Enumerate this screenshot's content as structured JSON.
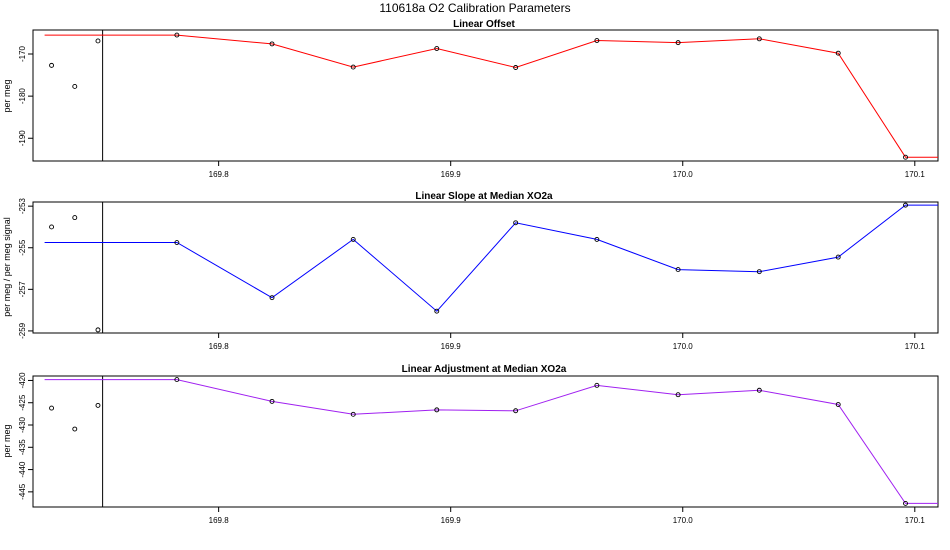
{
  "figure": {
    "title": "110618a   O2 Calibration Parameters"
  },
  "chart_data": [
    {
      "type": "line",
      "title": "Linear Offset",
      "xlabel": "",
      "ylabel": "per meg",
      "color": "#ff0000",
      "grid": false,
      "xlim": [
        169.72,
        170.11
      ],
      "ylim": [
        -195.4,
        -164.3
      ],
      "xticks": [
        169.8,
        169.9,
        170.0,
        170.1
      ],
      "xtick_labels": [
        "169.8",
        "169.9",
        "170.0",
        "170.1"
      ],
      "yticks": [
        -170,
        -180,
        -190
      ],
      "ytick_labels": [
        "-170",
        "-180",
        "-190"
      ],
      "vline_x": 169.75,
      "series_line": {
        "x": [
          169.725,
          169.782,
          169.823,
          169.858,
          169.894,
          169.928,
          169.963,
          169.998,
          170.033,
          170.067,
          170.096,
          170.11
        ],
        "y": [
          -165.5,
          -165.5,
          -167.6,
          -173.1,
          -168.7,
          -173.2,
          -166.8,
          -167.3,
          -166.4,
          -169.8,
          -194.5,
          -194.5
        ]
      },
      "series_points": {
        "x": [
          169.728,
          169.738,
          169.748,
          169.782,
          169.823,
          169.858,
          169.894,
          169.928,
          169.963,
          169.998,
          170.033,
          170.067,
          170.096
        ],
        "y": [
          -172.7,
          -177.7,
          -166.9,
          -165.5,
          -167.6,
          -173.1,
          -168.7,
          -173.2,
          -166.8,
          -167.3,
          -166.4,
          -169.8,
          -194.5
        ]
      }
    },
    {
      "type": "line",
      "title": "Linear Slope at Median XO2a",
      "xlabel": "",
      "ylabel": "per meg / per meg signal",
      "color": "#0000ff",
      "grid": false,
      "xlim": [
        169.72,
        170.11
      ],
      "ylim": [
        -259.1,
        -252.8
      ],
      "xticks": [
        169.8,
        169.9,
        170.0,
        170.1
      ],
      "xtick_labels": [
        "169.8",
        "169.9",
        "170.0",
        "170.1"
      ],
      "yticks": [
        -253,
        -255,
        -257,
        -259
      ],
      "ytick_labels": [
        "-253",
        "-255",
        "-257",
        "-259"
      ],
      "vline_x": 169.75,
      "series_line": {
        "x": [
          169.725,
          169.782,
          169.823,
          169.858,
          169.894,
          169.928,
          169.963,
          169.998,
          170.033,
          170.067,
          170.096,
          170.11
        ],
        "y": [
          -254.75,
          -254.75,
          -257.4,
          -254.6,
          -258.05,
          -253.8,
          -254.6,
          -256.05,
          -256.15,
          -255.45,
          -252.95,
          -252.95
        ]
      },
      "series_points": {
        "x": [
          169.728,
          169.738,
          169.748,
          169.782,
          169.823,
          169.858,
          169.894,
          169.928,
          169.963,
          169.998,
          170.033,
          170.067,
          170.096
        ],
        "y": [
          -254.0,
          -253.55,
          -258.95,
          -254.75,
          -257.4,
          -254.6,
          -258.05,
          -253.8,
          -254.6,
          -256.05,
          -256.15,
          -255.45,
          -252.95
        ]
      }
    },
    {
      "type": "line",
      "title": "Linear Adjustment at Median XO2a",
      "xlabel": "",
      "ylabel": "per meg",
      "color": "#a020f0",
      "grid": false,
      "xlim": [
        169.72,
        170.11
      ],
      "ylim": [
        -448.4,
        -419.0
      ],
      "xticks": [
        169.8,
        169.9,
        170.0,
        170.1
      ],
      "xtick_labels": [
        "169.8",
        "169.9",
        "170.0",
        "170.1"
      ],
      "yticks": [
        -420,
        -425,
        -430,
        -435,
        -440,
        -445
      ],
      "ytick_labels": [
        "-420",
        "-425",
        "-430",
        "-435",
        "-440",
        "-445"
      ],
      "vline_x": 169.75,
      "series_line": {
        "x": [
          169.725,
          169.782,
          169.823,
          169.858,
          169.894,
          169.928,
          169.963,
          169.998,
          170.033,
          170.067,
          170.096,
          170.11
        ],
        "y": [
          -419.8,
          -419.8,
          -424.7,
          -427.6,
          -426.6,
          -426.8,
          -421.1,
          -423.2,
          -422.2,
          -425.4,
          -447.6,
          -447.6
        ]
      },
      "series_points": {
        "x": [
          169.728,
          169.738,
          169.748,
          169.782,
          169.823,
          169.858,
          169.894,
          169.928,
          169.963,
          169.998,
          170.033,
          170.067,
          170.096
        ],
        "y": [
          -426.2,
          -430.9,
          -425.6,
          -419.8,
          -424.7,
          -427.6,
          -426.6,
          -426.8,
          -421.1,
          -423.2,
          -422.2,
          -425.4,
          -447.6
        ]
      }
    }
  ]
}
